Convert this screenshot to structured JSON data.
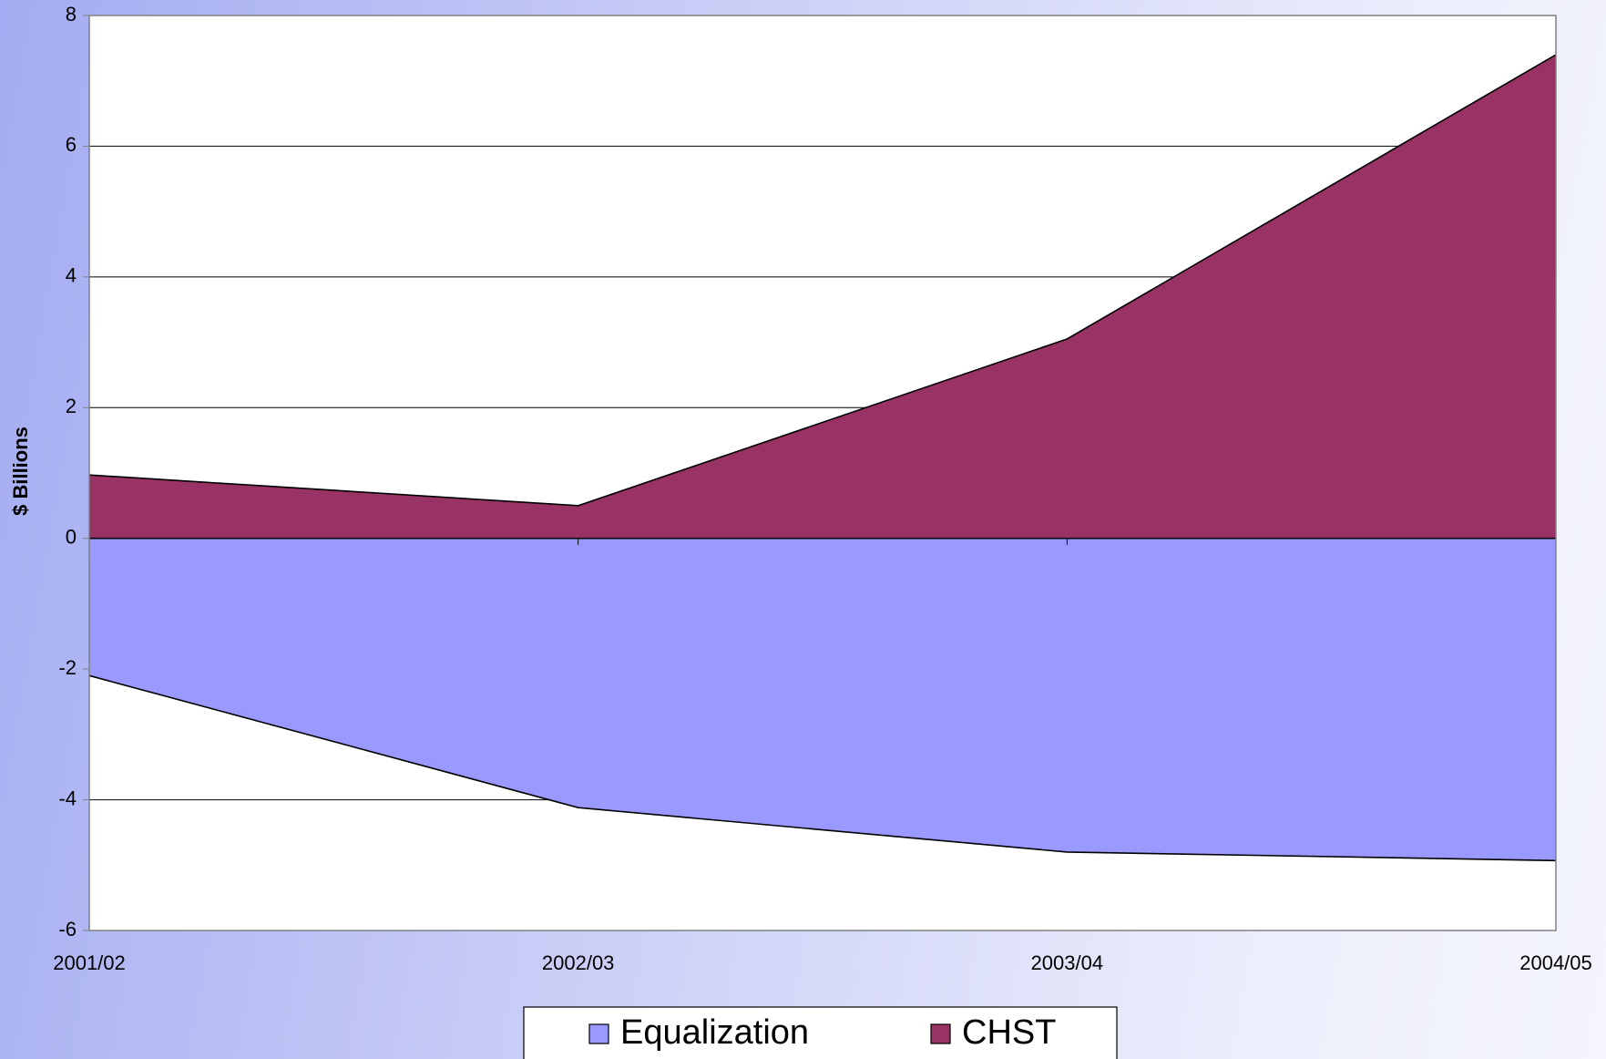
{
  "chart_data": {
    "type": "area",
    "axis_label": "$ Billions",
    "categories": [
      "2001/02",
      "2002/03",
      "2003/04",
      "2004/05"
    ],
    "series": [
      {
        "name": "Equalization",
        "color": "#9999ff",
        "values": [
          -2.1,
          -4.12,
          -4.8,
          -4.93
        ]
      },
      {
        "name": "CHST",
        "color": "#993366",
        "values": [
          0.97,
          0.5,
          3.05,
          7.4
        ]
      }
    ],
    "ylim": [
      -6,
      8
    ],
    "yticks": [
      -6,
      -4,
      -2,
      0,
      2,
      4,
      6,
      8
    ],
    "grid": true
  }
}
